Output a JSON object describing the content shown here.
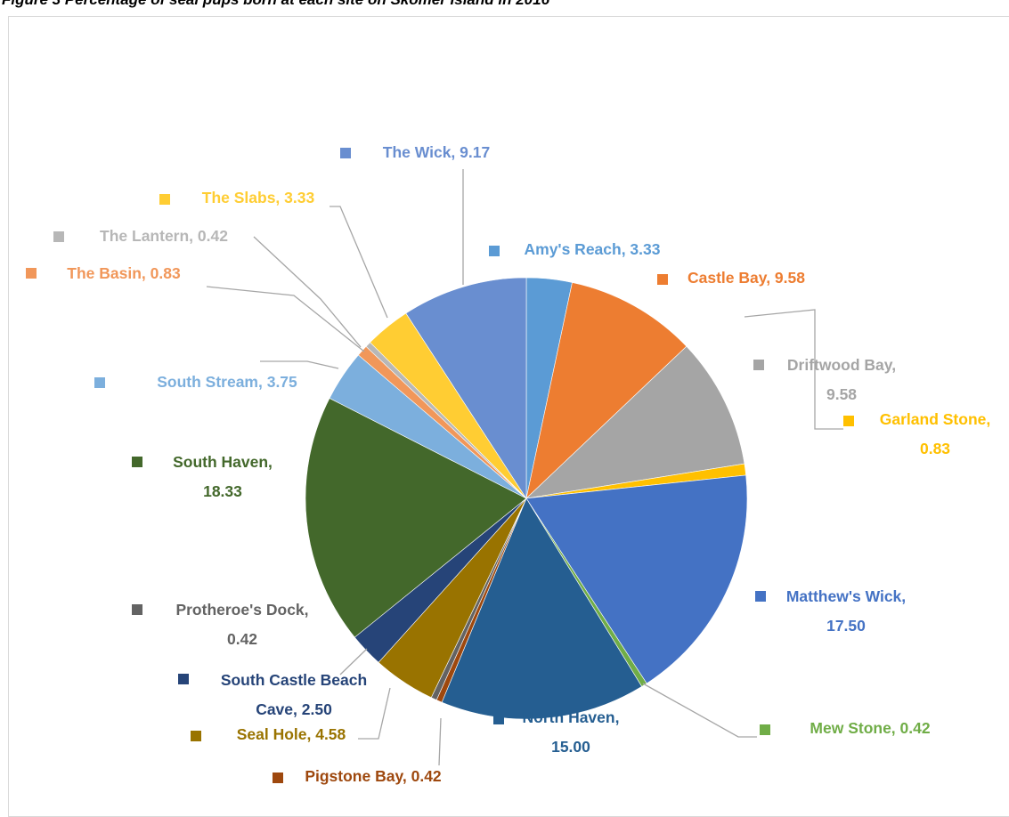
{
  "figure_title": "Figure 3 Percentage of seal pups born at each site on Skomer Island in 2016",
  "chart_data": {
    "type": "pie",
    "title": "",
    "slices": [
      {
        "name": "Amy's Reach",
        "value": 3.33,
        "value_label": "3.33",
        "color": "#5b9bd5"
      },
      {
        "name": "Castle Bay",
        "value": 9.58,
        "value_label": "9.58",
        "color": "#ed7d31"
      },
      {
        "name": "Driftwood Bay",
        "value": 9.58,
        "value_label": "9.58",
        "color": "#a5a5a5"
      },
      {
        "name": "Garland Stone",
        "value": 0.83,
        "value_label": "0.83",
        "color": "#ffc000"
      },
      {
        "name": "Matthew's Wick",
        "value": 17.5,
        "value_label": "17.50",
        "color": "#4472c4"
      },
      {
        "name": "Mew Stone",
        "value": 0.42,
        "value_label": "0.42",
        "color": "#70ad47"
      },
      {
        "name": "North Haven",
        "value": 15.0,
        "value_label": "15.00",
        "color": "#255e91"
      },
      {
        "name": "Pigstone Bay",
        "value": 0.42,
        "value_label": "0.42",
        "color": "#9e480e"
      },
      {
        "name": "Protheroe's Dock",
        "value": 0.42,
        "value_label": "0.42",
        "color": "#636363"
      },
      {
        "name": "Seal Hole",
        "value": 4.58,
        "value_label": "4.58",
        "color": "#997300"
      },
      {
        "name": "South Castle Beach Cave",
        "value": 2.5,
        "value_label": "2.50",
        "color": "#264478"
      },
      {
        "name": "South Haven",
        "value": 18.33,
        "value_label": "18.33",
        "color": "#43682b"
      },
      {
        "name": "South Stream",
        "value": 3.75,
        "value_label": "3.75",
        "color": "#7cafdd"
      },
      {
        "name": "The Basin",
        "value": 0.83,
        "value_label": "0.83",
        "color": "#f1975a"
      },
      {
        "name": "The Lantern",
        "value": 0.42,
        "value_label": "0.42",
        "color": "#b7b7b7"
      },
      {
        "name": "The Slabs",
        "value": 3.33,
        "value_label": "3.33",
        "color": "#ffcd33"
      },
      {
        "name": "The Wick",
        "value": 9.17,
        "value_label": "9.17",
        "color": "#698ed0"
      }
    ],
    "start_angle": "12 o'clock",
    "direction": "clockwise",
    "legend": "none (data labels with leader lines)"
  }
}
